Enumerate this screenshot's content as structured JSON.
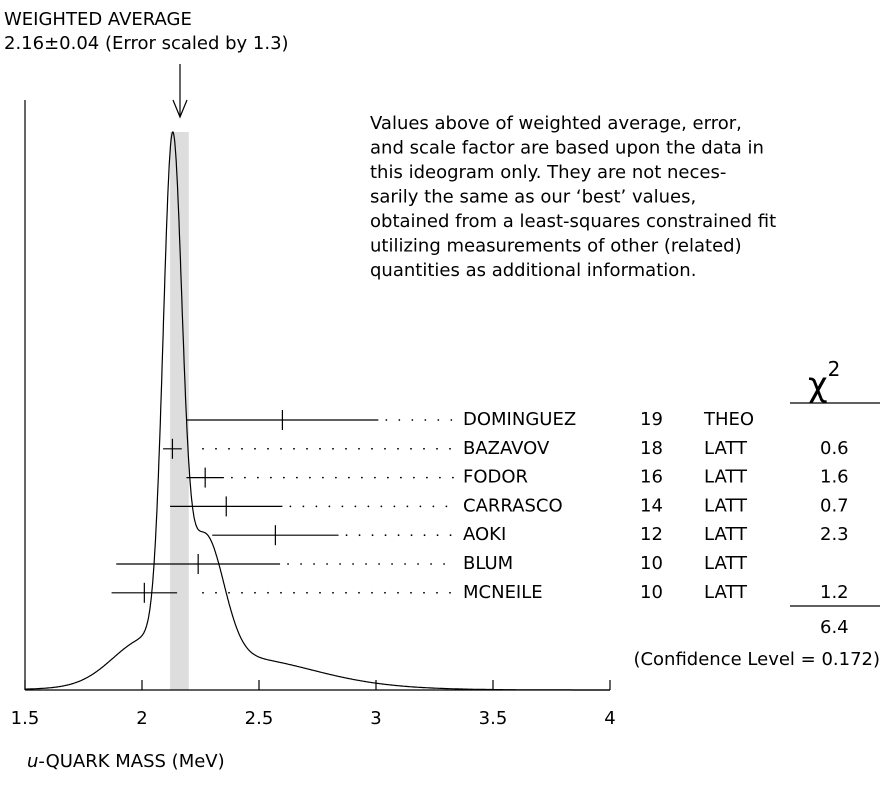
{
  "chart_data": {
    "type": "ideogram",
    "title": "WEIGHTED AVERAGE",
    "subtitle": "2.16±0.04 (Error scaled by 1.3)",
    "average": 2.16,
    "average_error": 0.04,
    "xlabel_var": "u",
    "xlabel": "-QUARK MASS (MeV)",
    "xlim": [
      1.5,
      4
    ],
    "xticks": [
      1.5,
      2,
      2.5,
      3,
      3.5,
      4
    ],
    "note": [
      "Values above of weighted average, error,",
      "and scale factor are based upon the data in",
      "this ideogram only.  They are not neces-",
      "sarily the same as our ‘best’ values,",
      "obtained from a least-squares constrained fit",
      "utilizing measurements of other (related)",
      "quantities as additional information."
    ],
    "chi2_symbol": "χ",
    "chi2_power": "2",
    "names": [
      "DOMINGUEZ",
      "BAZAVOV",
      "FODOR",
      "CARRASCO",
      "AOKI",
      "BLUM",
      "MCNEILE"
    ],
    "years": [
      "19",
      "18",
      "16",
      "14",
      "12",
      "10",
      "10"
    ],
    "techniques": [
      "THEO",
      "LATT",
      "LATT",
      "LATT",
      "LATT",
      "LATT",
      "LATT"
    ],
    "values": [
      2.6,
      2.13,
      2.27,
      2.36,
      2.57,
      2.24,
      2.01
    ],
    "errors": [
      0.41,
      0.04,
      0.08,
      0.24,
      0.27,
      0.35,
      0.14
    ],
    "chi2": [
      null,
      0.6,
      1.6,
      0.7,
      2.3,
      null,
      1.2
    ],
    "chi2_total": 6.4,
    "confidence": "(Confidence Level = 0.172)"
  }
}
